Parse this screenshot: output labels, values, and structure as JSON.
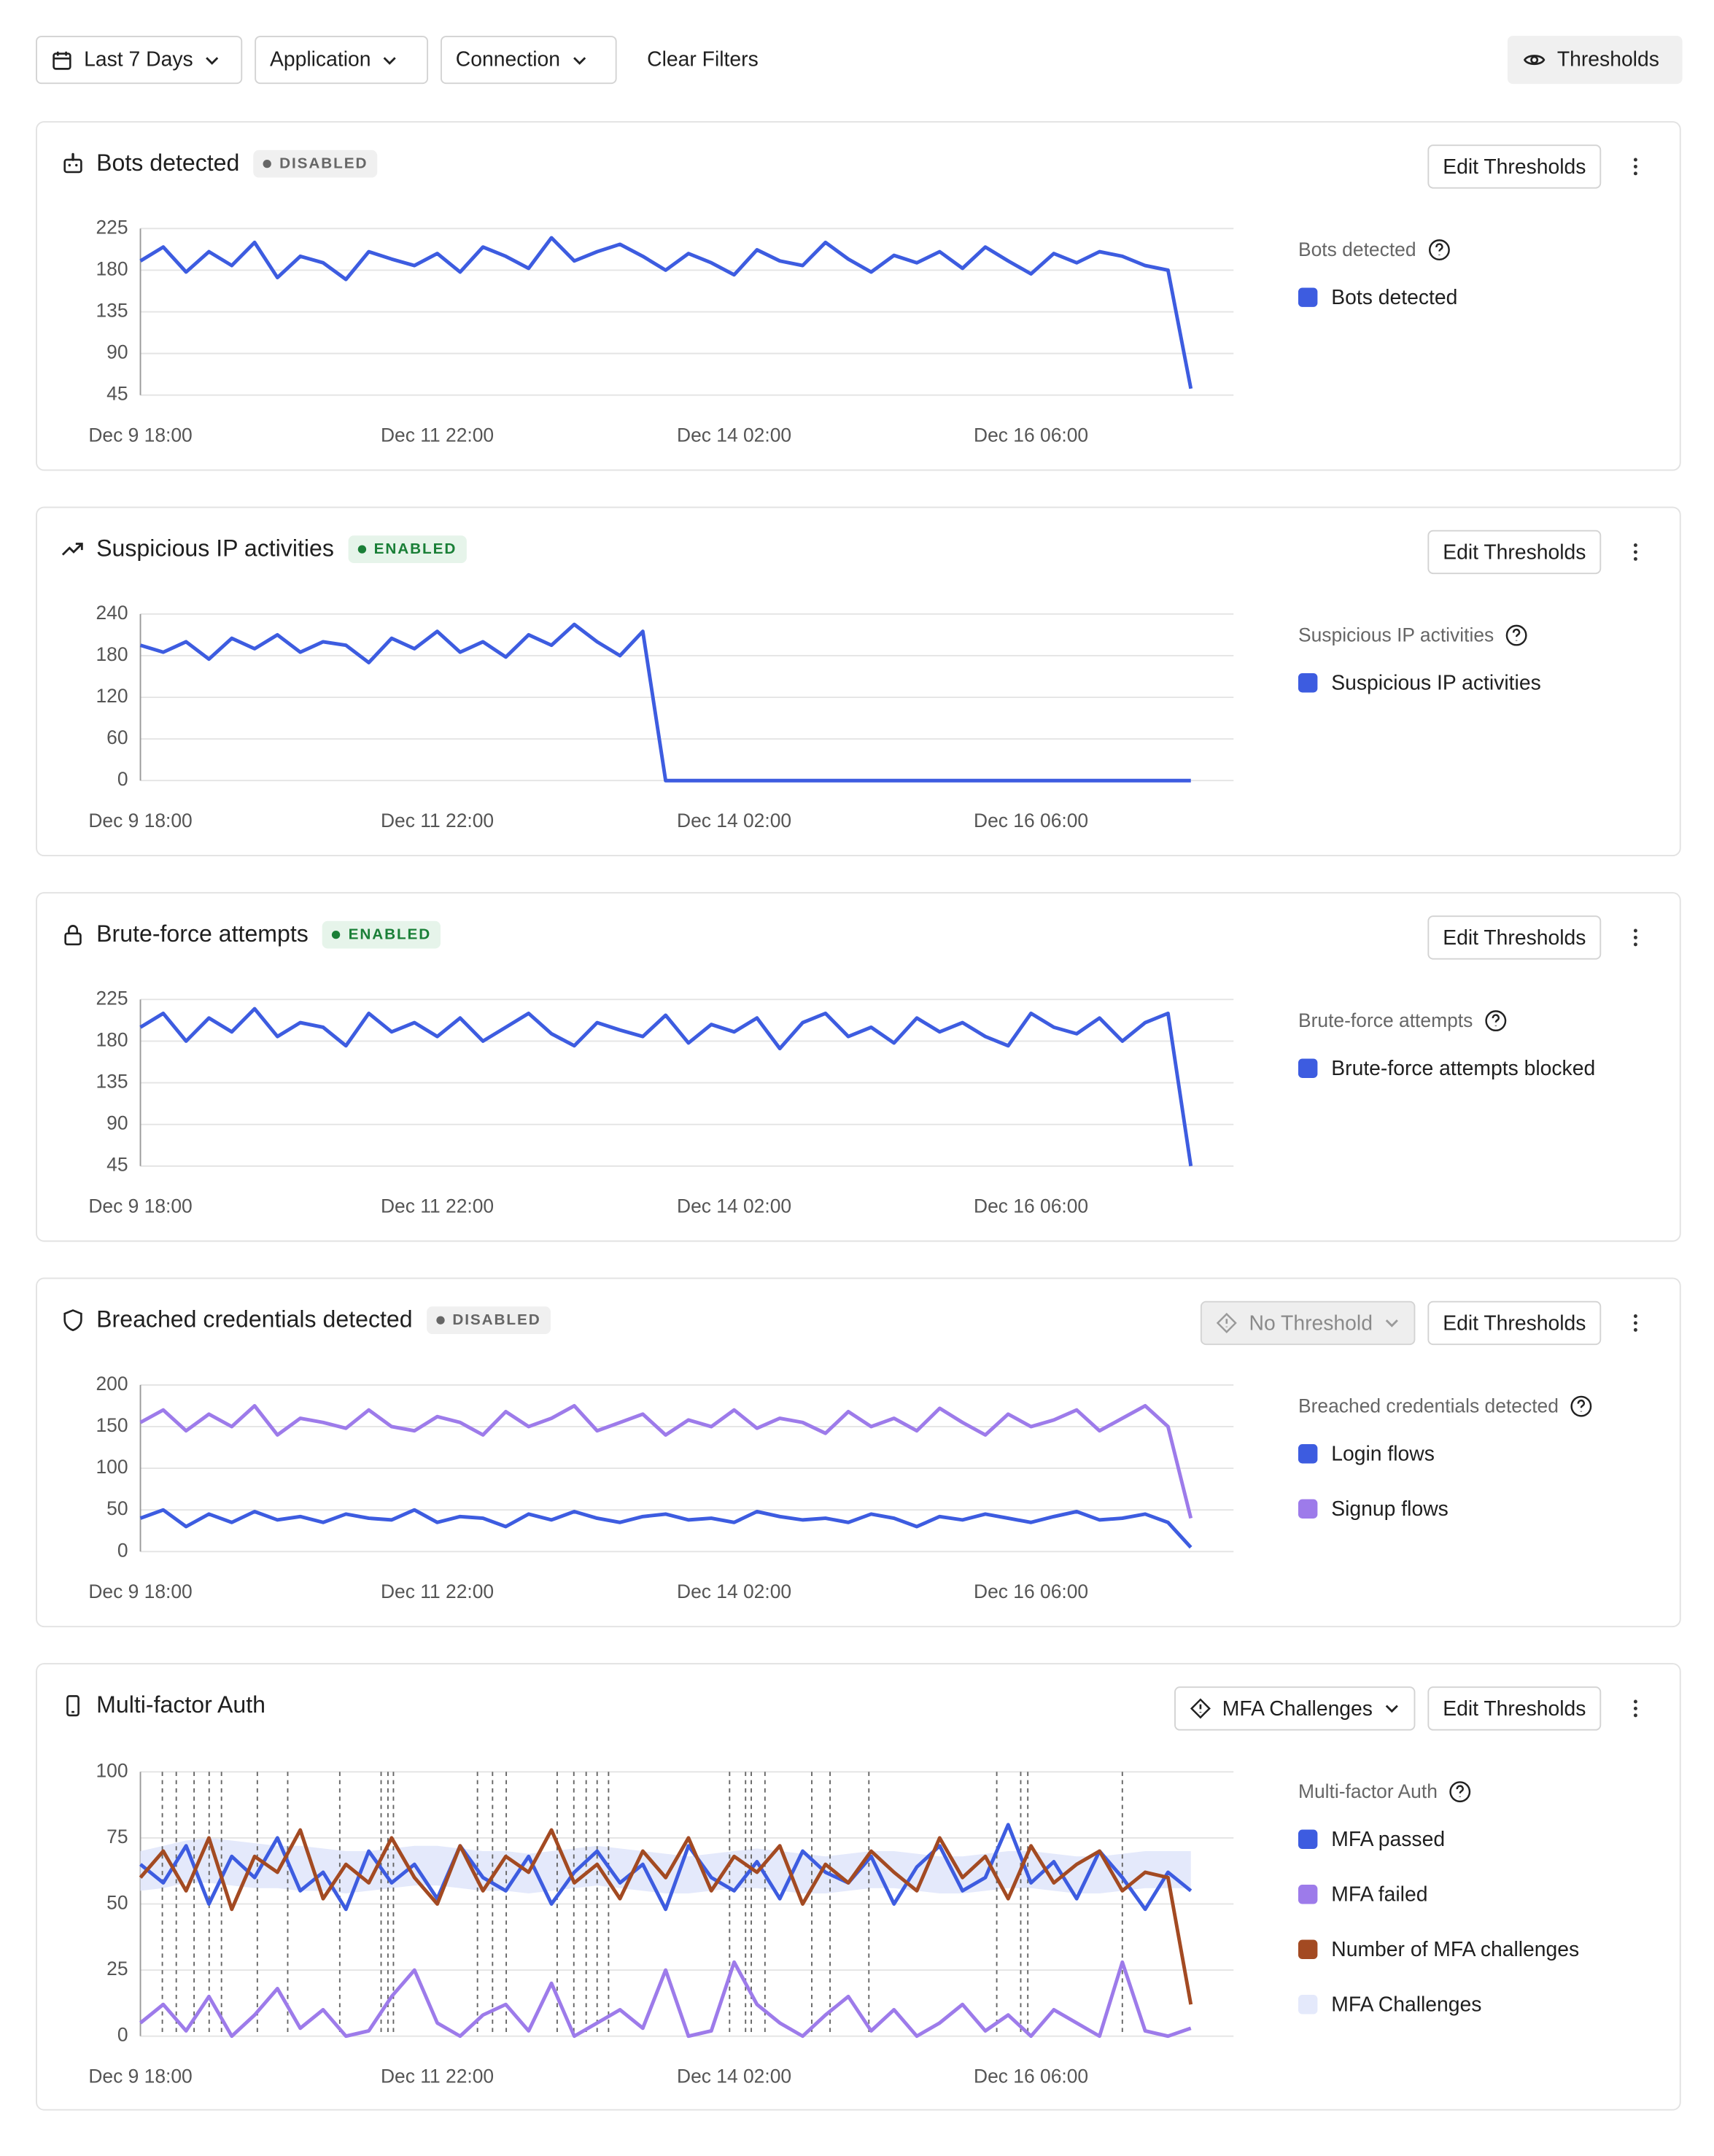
{
  "toolbar": {
    "date_range": "Last 7 Days",
    "application": "Application",
    "connection": "Connection",
    "clear": "Clear Filters",
    "thresholds": "Thresholds"
  },
  "chart_data": [
    {
      "type": "line",
      "title": "Bots detected",
      "status": "DISABLED",
      "status_color": "#666666",
      "status_bg": "#f0f0f0",
      "action": "Edit Thresholds",
      "categories": [
        "Dec 9 18:00",
        null,
        null,
        null,
        null,
        null,
        null,
        null,
        null,
        null,
        null,
        null,
        null,
        "Dec 11 22:00",
        null,
        null,
        null,
        null,
        null,
        null,
        null,
        null,
        null,
        null,
        null,
        null,
        "Dec 14 02:00",
        null,
        null,
        null,
        null,
        null,
        null,
        null,
        null,
        null,
        null,
        null,
        null,
        "Dec 16 06:00",
        null,
        null,
        null,
        null,
        null,
        null,
        null
      ],
      "ylim": [
        45,
        225
      ],
      "yticks": [
        45,
        90,
        135,
        180,
        225
      ],
      "series": [
        {
          "name": "Bots detected",
          "color": "#3d5ce0",
          "values": [
            190,
            205,
            178,
            200,
            185,
            210,
            172,
            195,
            188,
            170,
            200,
            192,
            185,
            198,
            178,
            205,
            195,
            182,
            215,
            190,
            200,
            208,
            195,
            180,
            198,
            188,
            175,
            202,
            190,
            185,
            210,
            192,
            178,
            196,
            188,
            200,
            182,
            205,
            190,
            176,
            198,
            188,
            200,
            195,
            185,
            180,
            52
          ]
        }
      ]
    },
    {
      "type": "line",
      "title": "Suspicious IP activities",
      "status": "ENABLED",
      "status_color": "#1a7f37",
      "status_bg": "#e6f4ea",
      "action": "Edit Thresholds",
      "categories": [
        "Dec 9 18:00",
        null,
        null,
        null,
        null,
        null,
        null,
        null,
        null,
        null,
        null,
        null,
        null,
        "Dec 11 22:00",
        null,
        null,
        null,
        null,
        null,
        null,
        null,
        null,
        null,
        null,
        null,
        null,
        "Dec 14 02:00",
        null,
        null,
        null,
        null,
        null,
        null,
        null,
        null,
        null,
        null,
        null,
        null,
        "Dec 16 06:00",
        null,
        null,
        null,
        null,
        null,
        null,
        null
      ],
      "ylim": [
        0,
        240
      ],
      "yticks": [
        0,
        60,
        120,
        180,
        240
      ],
      "series": [
        {
          "name": "Suspicious IP activities",
          "color": "#3d5ce0",
          "values": [
            195,
            185,
            200,
            175,
            205,
            190,
            210,
            185,
            200,
            195,
            170,
            205,
            190,
            215,
            185,
            200,
            178,
            210,
            195,
            225,
            200,
            180,
            215,
            0,
            0,
            0,
            0,
            0,
            0,
            0,
            0,
            0,
            0,
            0,
            0,
            0,
            0,
            0,
            0,
            0,
            0,
            0,
            0,
            0,
            0,
            0,
            0
          ]
        }
      ]
    },
    {
      "type": "line",
      "title": "Brute-force attempts",
      "status": "ENABLED",
      "status_color": "#1a7f37",
      "status_bg": "#e6f4ea",
      "action": "Edit Thresholds",
      "categories": [
        "Dec 9 18:00",
        null,
        null,
        null,
        null,
        null,
        null,
        null,
        null,
        null,
        null,
        null,
        null,
        "Dec 11 22:00",
        null,
        null,
        null,
        null,
        null,
        null,
        null,
        null,
        null,
        null,
        null,
        null,
        "Dec 14 02:00",
        null,
        null,
        null,
        null,
        null,
        null,
        null,
        null,
        null,
        null,
        null,
        null,
        "Dec 16 06:00",
        null,
        null,
        null,
        null,
        null,
        null,
        null
      ],
      "ylim": [
        45,
        225
      ],
      "yticks": [
        45,
        90,
        135,
        180,
        225
      ],
      "series": [
        {
          "name": "Brute-force attempts blocked",
          "color": "#3d5ce0",
          "values": [
            195,
            210,
            180,
            205,
            190,
            215,
            185,
            200,
            195,
            175,
            210,
            190,
            200,
            185,
            205,
            180,
            195,
            210,
            188,
            175,
            200,
            192,
            185,
            208,
            178,
            198,
            190,
            205,
            172,
            200,
            210,
            185,
            195,
            178,
            205,
            190,
            200,
            185,
            175,
            210,
            195,
            188,
            205,
            180,
            200,
            210,
            45
          ]
        }
      ]
    },
    {
      "type": "line",
      "title": "Breached credentials detected",
      "status": "DISABLED",
      "status_color": "#666666",
      "status_bg": "#f0f0f0",
      "selector": "No Threshold",
      "selector_disabled": true,
      "action": "Edit Thresholds",
      "categories": [
        "Dec 9 18:00",
        null,
        null,
        null,
        null,
        null,
        null,
        null,
        null,
        null,
        null,
        null,
        null,
        "Dec 11 22:00",
        null,
        null,
        null,
        null,
        null,
        null,
        null,
        null,
        null,
        null,
        null,
        null,
        "Dec 14 02:00",
        null,
        null,
        null,
        null,
        null,
        null,
        null,
        null,
        null,
        null,
        null,
        null,
        "Dec 16 06:00",
        null,
        null,
        null,
        null,
        null,
        null,
        null
      ],
      "ylim": [
        0,
        200
      ],
      "yticks": [
        0,
        50,
        100,
        150,
        200
      ],
      "series": [
        {
          "name": "Login flows",
          "color": "#3d5ce0",
          "values": [
            40,
            50,
            30,
            45,
            35,
            48,
            38,
            42,
            35,
            45,
            40,
            38,
            50,
            35,
            42,
            40,
            30,
            45,
            38,
            48,
            40,
            35,
            42,
            45,
            38,
            40,
            35,
            48,
            42,
            38,
            40,
            35,
            45,
            40,
            30,
            42,
            38,
            45,
            40,
            35,
            42,
            48,
            38,
            40,
            45,
            35,
            5
          ]
        },
        {
          "name": "Signup flows",
          "color": "#9d7bea",
          "values": [
            155,
            170,
            145,
            165,
            150,
            175,
            140,
            160,
            155,
            148,
            170,
            150,
            145,
            162,
            155,
            140,
            168,
            150,
            160,
            175,
            145,
            155,
            165,
            140,
            158,
            150,
            170,
            148,
            160,
            155,
            142,
            168,
            150,
            160,
            145,
            172,
            155,
            140,
            165,
            150,
            158,
            170,
            145,
            160,
            175,
            150,
            40
          ]
        }
      ]
    },
    {
      "type": "line",
      "title": "Multi-factor Auth",
      "selector": "MFA Challenges",
      "selector_disabled": false,
      "action": "Edit Thresholds",
      "categories": [
        "Dec 9 18:00",
        null,
        null,
        null,
        null,
        null,
        null,
        null,
        null,
        null,
        null,
        null,
        null,
        "Dec 11 22:00",
        null,
        null,
        null,
        null,
        null,
        null,
        null,
        null,
        null,
        null,
        null,
        null,
        "Dec 14 02:00",
        null,
        null,
        null,
        null,
        null,
        null,
        null,
        null,
        null,
        null,
        null,
        null,
        "Dec 16 06:00",
        null,
        null,
        null,
        null,
        null,
        null,
        null
      ],
      "ylim": [
        0,
        100
      ],
      "yticks": [
        0,
        25,
        50,
        75,
        100
      ],
      "markers": [
        0.96,
        1.57,
        2.35,
        3.01,
        3.55,
        5.12,
        6.45,
        8.73,
        10.54,
        10.84,
        11.08,
        14.76,
        15.42,
        16.02,
        18.25,
        18.98,
        19.52,
        20.0,
        20.5,
        25.8,
        26.5,
        26.75,
        27.35,
        29.4,
        30.2,
        31.9,
        37.5,
        38.55,
        38.86,
        43.0
      ],
      "series": [
        {
          "name": "MFA passed",
          "color": "#3d5ce0",
          "values": [
            65,
            58,
            72,
            50,
            68,
            60,
            75,
            55,
            62,
            48,
            70,
            58,
            65,
            52,
            72,
            60,
            55,
            68,
            50,
            62,
            70,
            58,
            65,
            48,
            72,
            60,
            55,
            66,
            52,
            70,
            62,
            58,
            68,
            50,
            64,
            72,
            55,
            60,
            80,
            58,
            66,
            52,
            70,
            60,
            48,
            62,
            55
          ]
        },
        {
          "name": "MFA failed",
          "color": "#9d7bea",
          "values": [
            5,
            12,
            2,
            15,
            0,
            8,
            18,
            3,
            10,
            0,
            2,
            15,
            25,
            5,
            0,
            8,
            12,
            2,
            20,
            0,
            5,
            10,
            3,
            25,
            0,
            2,
            28,
            12,
            5,
            0,
            8,
            15,
            2,
            10,
            0,
            5,
            12,
            2,
            8,
            0,
            10,
            5,
            0,
            28,
            2,
            0,
            3
          ]
        },
        {
          "name": "Number of MFA challenges",
          "color": "#a34a22",
          "values": [
            60,
            70,
            55,
            75,
            48,
            68,
            62,
            78,
            52,
            65,
            58,
            75,
            60,
            50,
            72,
            55,
            68,
            62,
            78,
            58,
            65,
            52,
            70,
            60,
            75,
            55,
            68,
            62,
            72,
            50,
            65,
            58,
            70,
            62,
            55,
            75,
            60,
            68,
            52,
            72,
            58,
            65,
            70,
            55,
            62,
            60,
            12
          ]
        },
        {
          "name": "MFA Challenges",
          "color": "#e4e9fb",
          "values": [
            70,
            72,
            74,
            75,
            74,
            73,
            72,
            72,
            71,
            70,
            70,
            71,
            72,
            72,
            71,
            70,
            70,
            69,
            70,
            71,
            72,
            71,
            70,
            69,
            68,
            69,
            70,
            71,
            70,
            69,
            68,
            69,
            70,
            70,
            69,
            68,
            68,
            69,
            70,
            70,
            69,
            68,
            68,
            69,
            70,
            70,
            70
          ],
          "lower": [
            55,
            56,
            58,
            58,
            57,
            56,
            56,
            55,
            55,
            54,
            55,
            56,
            57,
            57,
            56,
            55,
            55,
            54,
            55,
            56,
            57,
            56,
            55,
            54,
            54,
            55,
            56,
            56,
            55,
            54,
            54,
            55,
            56,
            56,
            55,
            54,
            54,
            55,
            56,
            56,
            55,
            54,
            54,
            55,
            56,
            56,
            56
          ]
        }
      ]
    }
  ]
}
